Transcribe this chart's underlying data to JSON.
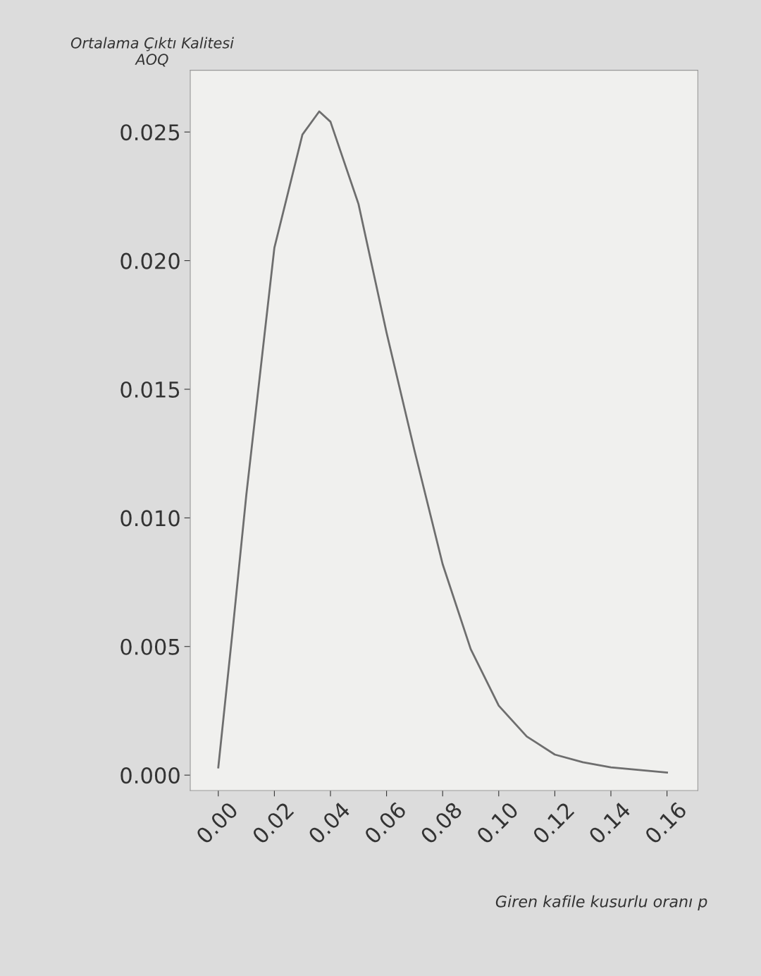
{
  "chart_data": {
    "type": "line",
    "ylabel": "Ortalama Çıktı Kalitesi\nAOQ",
    "xlabel": "Giren kafile kusurlu oranı p",
    "x": [
      0.0,
      0.005,
      0.01,
      0.02,
      0.03,
      0.036,
      0.04,
      0.05,
      0.06,
      0.07,
      0.08,
      0.09,
      0.1,
      0.11,
      0.12,
      0.13,
      0.14,
      0.16
    ],
    "series": [
      {
        "color": "#6e6e6e",
        "values": [
          0.0003,
          0.0055,
          0.0109,
          0.0205,
          0.0249,
          0.0258,
          0.0254,
          0.0222,
          0.0172,
          0.0126,
          0.0082,
          0.0049,
          0.0027,
          0.0015,
          0.0008,
          0.0005,
          0.0003,
          0.0001
        ]
      }
    ],
    "xlim": [
      -0.01,
      0.171
    ],
    "ylim": [
      -0.0006,
      0.0274
    ],
    "xticks": [
      {
        "value": 0.0,
        "label": "0.00"
      },
      0.02,
      0.04,
      0.06,
      0.08,
      {
        "value": 0.1,
        "label": "0.10"
      },
      0.12,
      0.14,
      0.16
    ],
    "yticks": [
      {
        "value": 0.0,
        "label": "0.000"
      },
      0.005,
      {
        "value": 0.01,
        "label": "0.010"
      },
      0.015,
      {
        "value": 0.02,
        "label": "0.020"
      },
      0.025
    ],
    "grid": false,
    "marker": "none",
    "line_style": "solid"
  }
}
